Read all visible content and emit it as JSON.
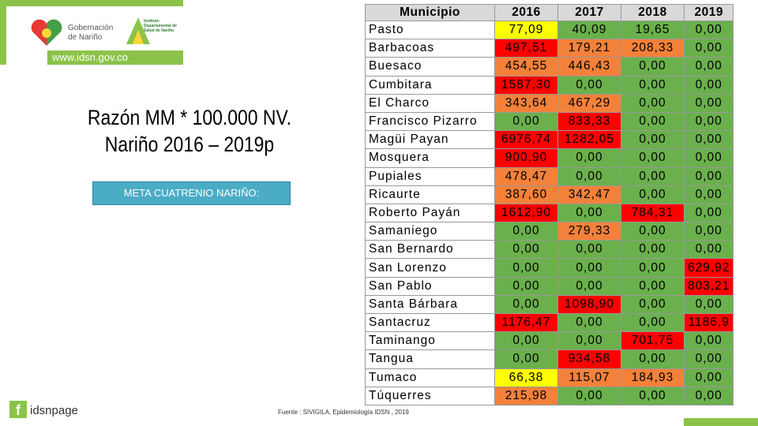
{
  "header": {
    "logo_text": "Gobernación de Nariño",
    "institute": "Instituto Departamental de Salud de Nariño",
    "website": "www.idsn.gov.co"
  },
  "title": {
    "line1": "Razón MM * 100.000 NV.",
    "line2": "Nariño 2016 – 2019p"
  },
  "goal_box": "META CUATRENIO NARIÑO:",
  "source": "Fuente : SIVIGILA, Epidemiología IDSN , 2019",
  "social": "idsnpage",
  "table": {
    "columns": [
      "Municipio",
      "2016",
      "2017",
      "2018",
      "2019"
    ],
    "rows": [
      [
        "Pasto",
        "77,09",
        "40,09",
        "19,65",
        "0,00"
      ],
      [
        "Barbacoas",
        "497,51",
        "179,21",
        "208,33",
        "0,00"
      ],
      [
        "Buesaco",
        "454,55",
        "446,43",
        "0,00",
        "0,00"
      ],
      [
        "Cumbitara",
        "1587,30",
        "0,00",
        "0,00",
        "0,00"
      ],
      [
        "El Charco",
        "343,64",
        "467,29",
        "0,00",
        "0,00"
      ],
      [
        "Francisco Pizarro",
        "0,00",
        "833,33",
        "0,00",
        "0,00"
      ],
      [
        "Magüi Payan",
        "6976,74",
        "1282,05",
        "0,00",
        "0,00"
      ],
      [
        "Mosquera",
        "900,90",
        "0,00",
        "0,00",
        "0,00"
      ],
      [
        "Pupiales",
        "478,47",
        "0,00",
        "0,00",
        "0,00"
      ],
      [
        "Ricaurte",
        "387,60",
        "342,47",
        "0,00",
        "0,00"
      ],
      [
        "Roberto Payán",
        "1612,90",
        "0,00",
        "784,31",
        "0,00"
      ],
      [
        "Samaniego",
        "0,00",
        "279,33",
        "0,00",
        "0,00"
      ],
      [
        "San Bernardo",
        "0,00",
        "0,00",
        "0,00",
        "0,00"
      ],
      [
        "San Lorenzo",
        "0,00",
        "0,00",
        "0,00",
        "629,92"
      ],
      [
        "San Pablo",
        "0,00",
        "0,00",
        "0,00",
        "803,21"
      ],
      [
        "Santa Bárbara",
        "0,00",
        "1098,90",
        "0,00",
        "0,00"
      ],
      [
        "Santacruz",
        "1176,47",
        "0,00",
        "0,00",
        "1186,9"
      ],
      [
        "Taminango",
        "0,00",
        "0,00",
        "701,75",
        "0,00"
      ],
      [
        "Tangua",
        "0,00",
        "934,58",
        "0,00",
        "0,00"
      ],
      [
        "Tumaco",
        "66,38",
        "115,07",
        "184,93",
        "0,00"
      ],
      [
        "Túquerres",
        "215,98",
        "0,00",
        "0,00",
        "0,00"
      ]
    ],
    "cell_colors": [
      [
        "#ffff00",
        "#6ab04c",
        "#6ab04c",
        "#6ab04c"
      ],
      [
        "#ff0000",
        "#f4813a",
        "#f4813a",
        "#6ab04c"
      ],
      [
        "#f4813a",
        "#f4813a",
        "#6ab04c",
        "#6ab04c"
      ],
      [
        "#ff0000",
        "#6ab04c",
        "#6ab04c",
        "#6ab04c"
      ],
      [
        "#f4813a",
        "#f4813a",
        "#6ab04c",
        "#6ab04c"
      ],
      [
        "#6ab04c",
        "#ff0000",
        "#6ab04c",
        "#6ab04c"
      ],
      [
        "#ff0000",
        "#ff0000",
        "#6ab04c",
        "#6ab04c"
      ],
      [
        "#ff0000",
        "#6ab04c",
        "#6ab04c",
        "#6ab04c"
      ],
      [
        "#f4813a",
        "#6ab04c",
        "#6ab04c",
        "#6ab04c"
      ],
      [
        "#f4813a",
        "#f4813a",
        "#6ab04c",
        "#6ab04c"
      ],
      [
        "#ff0000",
        "#6ab04c",
        "#ff0000",
        "#6ab04c"
      ],
      [
        "#6ab04c",
        "#f4813a",
        "#6ab04c",
        "#6ab04c"
      ],
      [
        "#6ab04c",
        "#6ab04c",
        "#6ab04c",
        "#6ab04c"
      ],
      [
        "#6ab04c",
        "#6ab04c",
        "#6ab04c",
        "#ff0000"
      ],
      [
        "#6ab04c",
        "#6ab04c",
        "#6ab04c",
        "#ff0000"
      ],
      [
        "#6ab04c",
        "#ff0000",
        "#6ab04c",
        "#6ab04c"
      ],
      [
        "#ff0000",
        "#6ab04c",
        "#6ab04c",
        "#ff0000"
      ],
      [
        "#6ab04c",
        "#6ab04c",
        "#ff0000",
        "#6ab04c"
      ],
      [
        "#6ab04c",
        "#ff0000",
        "#6ab04c",
        "#6ab04c"
      ],
      [
        "#ffff00",
        "#f4813a",
        "#f4813a",
        "#6ab04c"
      ],
      [
        "#f4813a",
        "#6ab04c",
        "#6ab04c",
        "#6ab04c"
      ]
    ]
  }
}
